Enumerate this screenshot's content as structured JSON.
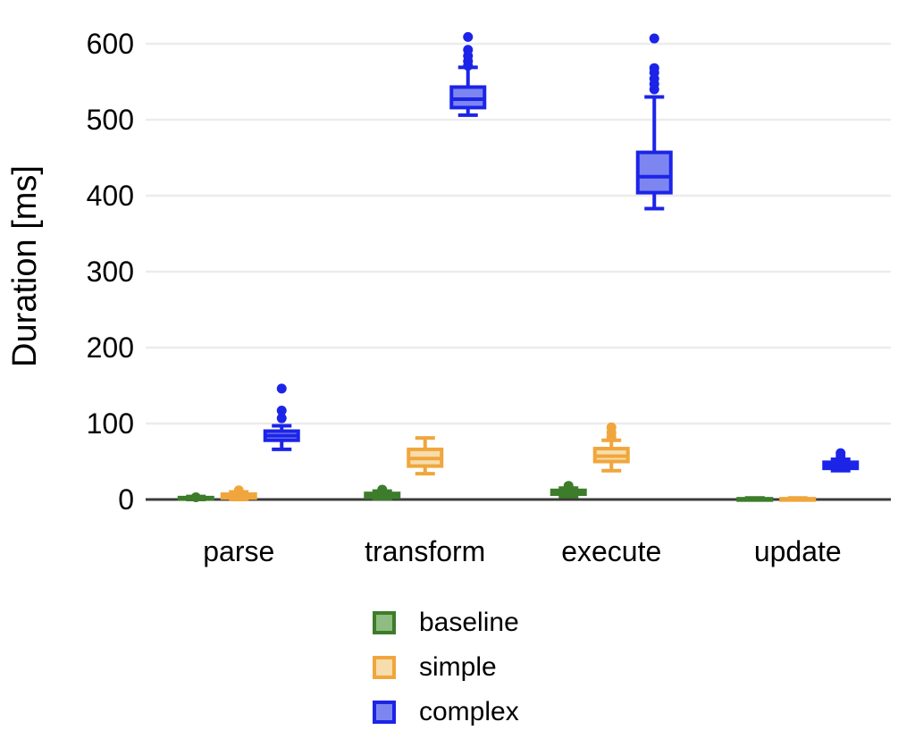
{
  "chart_data": {
    "type": "boxplot",
    "title": "",
    "xlabel": "",
    "ylabel": "Duration [ms]",
    "categories": [
      "parse",
      "transform",
      "execute",
      "update"
    ],
    "yticks": [
      0,
      100,
      200,
      300,
      400,
      500,
      600
    ],
    "ylim": [
      0,
      620
    ],
    "grid": "horizontal",
    "legend_position": "bottom",
    "axis_color": "#3b3b3b",
    "gridline_color": "#ececec",
    "series": [
      {
        "name": "baseline",
        "color": "#3d7c2b",
        "fill": "#8fbc80",
        "boxes": [
          {
            "low": 0,
            "q1": 0.5,
            "median": 1.5,
            "q3": 2.5,
            "high": 4,
            "outliers": [
              3
            ]
          },
          {
            "low": 1,
            "q1": 3,
            "median": 5,
            "q3": 8,
            "high": 11,
            "outliers": [
              13
            ]
          },
          {
            "low": 4,
            "q1": 7,
            "median": 9,
            "q3": 12,
            "high": 15,
            "outliers": [
              18
            ]
          },
          {
            "low": 0,
            "q1": 0,
            "median": 0.5,
            "q3": 1,
            "high": 2,
            "outliers": []
          }
        ]
      },
      {
        "name": "simple",
        "color": "#f0a63c",
        "fill": "#f7dcac",
        "boxes": [
          {
            "low": 0,
            "q1": 2,
            "median": 4,
            "q3": 7,
            "high": 10,
            "outliers": [
              12
            ]
          },
          {
            "low": 34,
            "q1": 44,
            "median": 54,
            "q3": 66,
            "high": 81,
            "outliers": []
          },
          {
            "low": 38,
            "q1": 50,
            "median": 57,
            "q3": 67,
            "high": 78,
            "outliers": [
              82,
              88,
              95
            ]
          },
          {
            "low": 0,
            "q1": 0,
            "median": 0.5,
            "q3": 1,
            "high": 2,
            "outliers": []
          }
        ]
      },
      {
        "name": "complex",
        "color": "#1c24e8",
        "fill": "#7d86f0",
        "boxes": [
          {
            "low": 66,
            "q1": 78,
            "median": 84,
            "q3": 90,
            "high": 97,
            "outliers": [
              107,
              117,
              146
            ]
          },
          {
            "low": 506,
            "q1": 516,
            "median": 527,
            "q3": 543,
            "high": 569,
            "outliers": [
              571,
              577,
              584,
              592,
              609
            ]
          },
          {
            "low": 383,
            "q1": 404,
            "median": 425,
            "q3": 457,
            "high": 530,
            "outliers": [
              540,
              547,
              554,
              562,
              568,
              607
            ]
          },
          {
            "low": 38,
            "q1": 41,
            "median": 45,
            "q3": 49,
            "high": 53,
            "outliers": [
              57,
              61
            ]
          }
        ]
      }
    ]
  },
  "legend": {
    "items": [
      {
        "label": "baseline"
      },
      {
        "label": "simple"
      },
      {
        "label": "complex"
      }
    ]
  }
}
